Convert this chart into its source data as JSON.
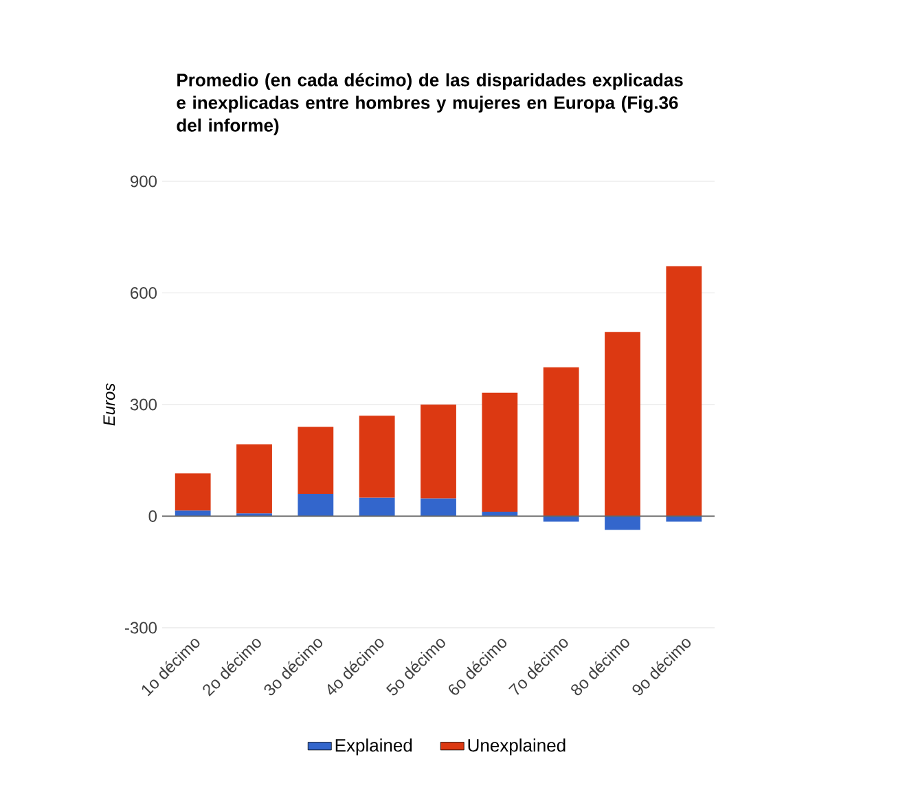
{
  "chart_data": {
    "type": "bar",
    "stacked": true,
    "title": "Promedio (en cada décimo) de las disparidades explicadas e inexplicadas entre hombres y mujeres en Europa (Fig.36 del informe)",
    "ylabel": "Euros",
    "categories": [
      "1o décimo",
      "2o décimo",
      "3o décimo",
      "4o décimo",
      "5o décimo",
      "6o décimo",
      "7o décimo",
      "8o décimo",
      "9o décimo"
    ],
    "series": [
      {
        "name": "Explained",
        "color": "#3366cc",
        "values": [
          15,
          8,
          60,
          50,
          48,
          12,
          -15,
          -37,
          -15
        ]
      },
      {
        "name": "Unexplained",
        "color": "#dc3912",
        "values": [
          100,
          185,
          180,
          220,
          252,
          320,
          400,
          495,
          672
        ]
      }
    ],
    "ylim": [
      -300,
      900
    ],
    "yticks": [
      -300,
      0,
      300,
      600,
      900
    ],
    "grid": "y",
    "legend": "bottom"
  }
}
